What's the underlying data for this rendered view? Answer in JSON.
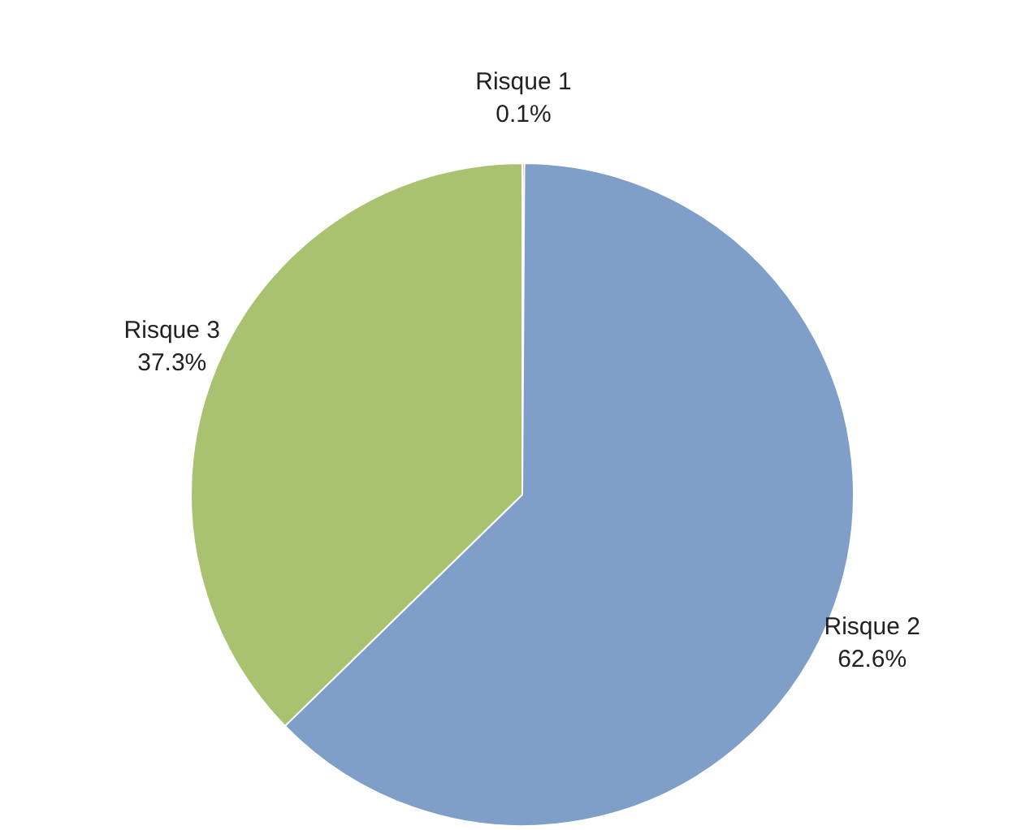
{
  "chart_data": {
    "type": "pie",
    "categories": [
      "Risque 1",
      "Risque 2",
      "Risque 3"
    ],
    "values": [
      0.1,
      62.6,
      37.3
    ],
    "value_labels": [
      "0.1%",
      "62.6%",
      "37.3%"
    ],
    "colors": [
      "#c0504d",
      "#7f9fc8",
      "#a9c26f"
    ]
  }
}
